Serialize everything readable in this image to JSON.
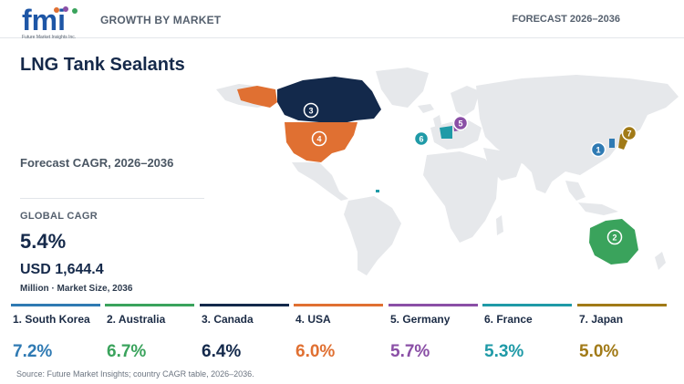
{
  "header": {
    "logo_text": "fmi",
    "logo_subtext": "Future Market Insights Inc.",
    "kicker": "GROWTH BY MARKET",
    "forecast": "FORECAST 2026–2036"
  },
  "main": {
    "title": "LNG Tank Sealants",
    "cagr_caption": "Forecast CAGR, 2026–2036",
    "global_label": "GLOBAL CAGR",
    "global_value": "5.4%",
    "market_size": "USD 1,644.4",
    "market_caption": "Million · Market Size, 2036"
  },
  "map_markers": [
    {
      "rank": "1",
      "country": "South Korea",
      "color": "#2f7ab3"
    },
    {
      "rank": "2",
      "country": "Australia",
      "color": "#3aa35c"
    },
    {
      "rank": "3",
      "country": "Canada",
      "color": "#13294b"
    },
    {
      "rank": "4",
      "country": "USA",
      "color": "#e07032"
    },
    {
      "rank": "5",
      "country": "Germany",
      "color": "#8a4fa6"
    },
    {
      "rank": "6",
      "country": "France",
      "color": "#1f9aa7"
    },
    {
      "rank": "7",
      "country": "Japan",
      "color": "#a17a17"
    }
  ],
  "countries": [
    {
      "label": "1. South Korea",
      "value": "7.2%",
      "color": "#2f7ab3"
    },
    {
      "label": "2. Australia",
      "value": "6.7%",
      "color": "#3aa35c"
    },
    {
      "label": "3. Canada",
      "value": "6.4%",
      "color": "#13294b"
    },
    {
      "label": "4. USA",
      "value": "6.0%",
      "color": "#e07032"
    },
    {
      "label": "5. Germany",
      "value": "5.7%",
      "color": "#8a4fa6"
    },
    {
      "label": "6. France",
      "value": "5.3%",
      "color": "#1f9aa7"
    },
    {
      "label": "7. Japan",
      "value": "5.0%",
      "color": "#a17a17"
    }
  ],
  "footer": {
    "source": "Source: Future Market Insights; country CAGR table, 2026–2036."
  }
}
